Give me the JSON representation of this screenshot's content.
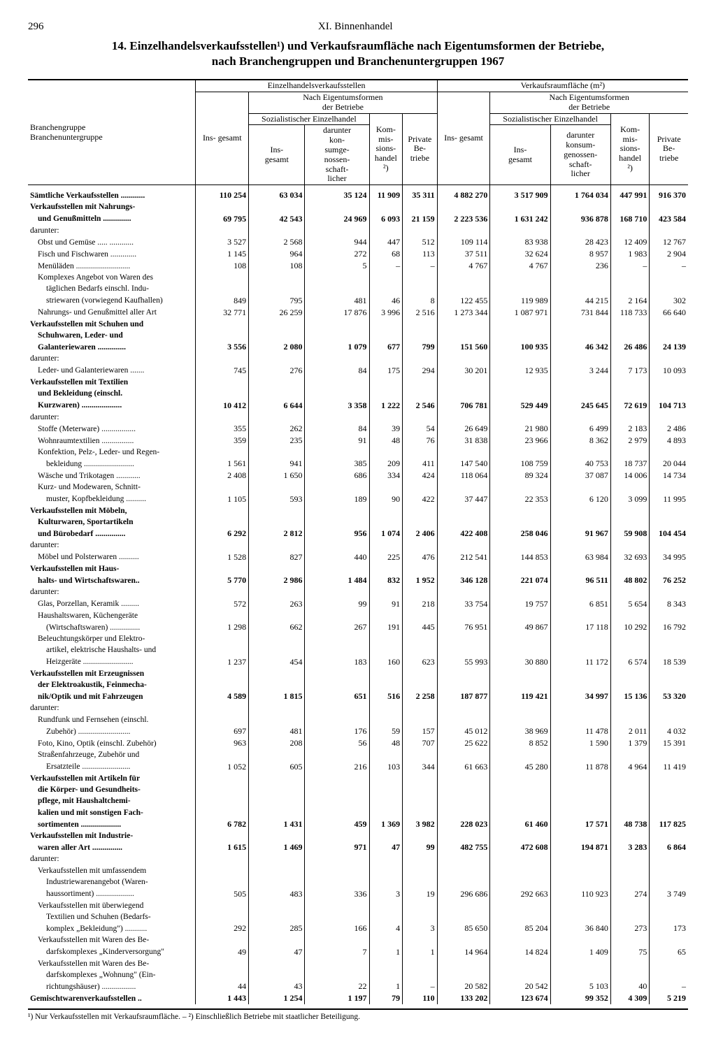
{
  "page_number": "296",
  "chapter": "XI. Binnenhandel",
  "title_line1": "14. Einzelhandelsverkaufsstellen¹) und Verkaufsraumfläche nach Eigentumsformen der Betriebe,",
  "title_line2": "nach Branchengruppen und Branchenuntergruppen 1967",
  "head": {
    "col_group1": "Einzelhandelsverkaufsstellen",
    "col_group2": "Verkaufsraumfläche (m²)",
    "eigentum": "Nach Eigentumsformen\nder Betriebe",
    "row_label1": "Branchengruppe",
    "row_label2": "Branchenuntergruppe",
    "insgesamt": "Ins-\ngesamt",
    "soz": "Sozialistischer\nEinzelhandel",
    "soz_ins": "Ins-\ngesamt",
    "soz_dar": "darunter\nkon-\nsumge-\nnossen-\nschaft-\nlicher",
    "kom": "Kom-\nmis-\nsions-\nhandel\n²)",
    "priv": "Private\nBe-\ntriebe",
    "dar2": "darunter\nkonsum-\ngenossen-\nschaft-\nlicher"
  },
  "rows": [
    {
      "label": "Sämtliche Verkaufsstellen ............",
      "bold": true,
      "v": [
        "110 254",
        "63 034",
        "35 124",
        "11 909",
        "35 311",
        "4 882 270",
        "3 517 909",
        "1 764 034",
        "447 991",
        "916 370"
      ]
    },
    {
      "label": "Verkaufsstellen mit Nahrungs-",
      "bold": true,
      "v": [
        "",
        "",
        "",
        "",
        "",
        "",
        "",
        "",
        "",
        ""
      ]
    },
    {
      "label": "und Genußmitteln ..............",
      "bold": true,
      "indent": 1,
      "v": [
        "69 795",
        "42 543",
        "24 969",
        "6 093",
        "21 159",
        "2 223 536",
        "1 631 242",
        "936 878",
        "168 710",
        "423 584"
      ]
    },
    {
      "label": "darunter:",
      "v": [
        "",
        "",
        "",
        "",
        "",
        "",
        "",
        "",
        "",
        ""
      ]
    },
    {
      "label": "Obst und Gemüse ..... ............",
      "indent": 1,
      "v": [
        "3 527",
        "2 568",
        "944",
        "447",
        "512",
        "109 114",
        "83 938",
        "28 423",
        "12 409",
        "12 767"
      ]
    },
    {
      "label": "Fisch und Fischwaren .............",
      "indent": 1,
      "v": [
        "1 145",
        "964",
        "272",
        "68",
        "113",
        "37 511",
        "32 624",
        "8 957",
        "1 983",
        "2 904"
      ]
    },
    {
      "label": "Menüläden ...........................",
      "indent": 1,
      "v": [
        "108",
        "108",
        "5",
        "–",
        "–",
        "4 767",
        "4 767",
        "236",
        "–",
        "–"
      ]
    },
    {
      "label": "Komplexes Angebot von Waren des",
      "indent": 1,
      "v": [
        "",
        "",
        "",
        "",
        "",
        "",
        "",
        "",
        "",
        ""
      ]
    },
    {
      "label": "täglichen Bedarfs einschl. Indu-",
      "indent": 2,
      "v": [
        "",
        "",
        "",
        "",
        "",
        "",
        "",
        "",
        "",
        ""
      ]
    },
    {
      "label": "striewaren (vorwiegend Kaufhallen)",
      "indent": 2,
      "v": [
        "849",
        "795",
        "481",
        "46",
        "8",
        "122 455",
        "119 989",
        "44 215",
        "2 164",
        "302"
      ]
    },
    {
      "label": "Nahrungs- und Genußmittel aller Art",
      "indent": 1,
      "v": [
        "32 771",
        "26 259",
        "17 876",
        "3 996",
        "2 516",
        "1 273 344",
        "1 087 971",
        "731 844",
        "118 733",
        "66 640"
      ]
    },
    {
      "label": "Verkaufsstellen mit Schuhen und",
      "bold": true,
      "v": [
        "",
        "",
        "",
        "",
        "",
        "",
        "",
        "",
        "",
        ""
      ]
    },
    {
      "label": "Schuhwaren, Leder- und",
      "bold": true,
      "indent": 1,
      "v": [
        "",
        "",
        "",
        "",
        "",
        "",
        "",
        "",
        "",
        ""
      ]
    },
    {
      "label": "Galanteriewaren ..............",
      "bold": true,
      "indent": 1,
      "v": [
        "3 556",
        "2 080",
        "1 079",
        "677",
        "799",
        "151 560",
        "100 935",
        "46 342",
        "26 486",
        "24 139"
      ]
    },
    {
      "label": "darunter:",
      "v": [
        "",
        "",
        "",
        "",
        "",
        "",
        "",
        "",
        "",
        ""
      ]
    },
    {
      "label": "Leder- und Galanteriewaren .......",
      "indent": 1,
      "v": [
        "745",
        "276",
        "84",
        "175",
        "294",
        "30 201",
        "12 935",
        "3 244",
        "7 173",
        "10 093"
      ]
    },
    {
      "label": "Verkaufsstellen mit Textilien",
      "bold": true,
      "v": [
        "",
        "",
        "",
        "",
        "",
        "",
        "",
        "",
        "",
        ""
      ]
    },
    {
      "label": "und Bekleidung (einschl.",
      "bold": true,
      "indent": 1,
      "v": [
        "",
        "",
        "",
        "",
        "",
        "",
        "",
        "",
        "",
        ""
      ]
    },
    {
      "label": "Kurzwaren) ....................",
      "bold": true,
      "indent": 1,
      "v": [
        "10 412",
        "6 644",
        "3 358",
        "1 222",
        "2 546",
        "706 781",
        "529 449",
        "245 645",
        "72 619",
        "104 713"
      ]
    },
    {
      "label": "darunter:",
      "v": [
        "",
        "",
        "",
        "",
        "",
        "",
        "",
        "",
        "",
        ""
      ]
    },
    {
      "label": "Stoffe (Meterware) .................",
      "indent": 1,
      "v": [
        "355",
        "262",
        "84",
        "39",
        "54",
        "26 649",
        "21 980",
        "6 499",
        "2 183",
        "2 486"
      ]
    },
    {
      "label": "Wohnraumtextilien ................",
      "indent": 1,
      "v": [
        "359",
        "235",
        "91",
        "48",
        "76",
        "31 838",
        "23 966",
        "8 362",
        "2 979",
        "4 893"
      ]
    },
    {
      "label": "Konfektion, Pelz-, Leder- und Regen-",
      "indent": 1,
      "v": [
        "",
        "",
        "",
        "",
        "",
        "",
        "",
        "",
        "",
        ""
      ]
    },
    {
      "label": "bekleidung .........................",
      "indent": 2,
      "v": [
        "1 561",
        "941",
        "385",
        "209",
        "411",
        "147 540",
        "108 759",
        "40 753",
        "18 737",
        "20 044"
      ]
    },
    {
      "label": "Wäsche und Trikotagen ............",
      "indent": 1,
      "v": [
        "2 408",
        "1 650",
        "686",
        "334",
        "424",
        "118 064",
        "89 324",
        "37 087",
        "14 006",
        "14 734"
      ]
    },
    {
      "label": "Kurz- und Modewaren, Schnitt-",
      "indent": 1,
      "v": [
        "",
        "",
        "",
        "",
        "",
        "",
        "",
        "",
        "",
        ""
      ]
    },
    {
      "label": "muster, Kopfbekleidung ..........",
      "indent": 2,
      "v": [
        "1 105",
        "593",
        "189",
        "90",
        "422",
        "37 447",
        "22 353",
        "6 120",
        "3 099",
        "11 995"
      ]
    },
    {
      "label": "Verkaufsstellen mit Möbeln,",
      "bold": true,
      "v": [
        "",
        "",
        "",
        "",
        "",
        "",
        "",
        "",
        "",
        ""
      ]
    },
    {
      "label": "Kulturwaren, Sportartikeln",
      "bold": true,
      "indent": 1,
      "v": [
        "",
        "",
        "",
        "",
        "",
        "",
        "",
        "",
        "",
        ""
      ]
    },
    {
      "label": "und Bürobedarf ...............",
      "bold": true,
      "indent": 1,
      "v": [
        "6 292",
        "2 812",
        "956",
        "1 074",
        "2 406",
        "422 408",
        "258 046",
        "91 967",
        "59 908",
        "104 454"
      ]
    },
    {
      "label": "darunter:",
      "v": [
        "",
        "",
        "",
        "",
        "",
        "",
        "",
        "",
        "",
        ""
      ]
    },
    {
      "label": "Möbel und Polsterwaren ..........",
      "indent": 1,
      "v": [
        "1 528",
        "827",
        "440",
        "225",
        "476",
        "212 541",
        "144 853",
        "63 984",
        "32 693",
        "34 995"
      ]
    },
    {
      "label": "Verkaufsstellen mit Haus-",
      "bold": true,
      "v": [
        "",
        "",
        "",
        "",
        "",
        "",
        "",
        "",
        "",
        ""
      ]
    },
    {
      "label": "halts- und Wirtschaftswaren..",
      "bold": true,
      "indent": 1,
      "v": [
        "5 770",
        "2 986",
        "1 484",
        "832",
        "1 952",
        "346 128",
        "221 074",
        "96 511",
        "48 802",
        "76 252"
      ]
    },
    {
      "label": "darunter:",
      "v": [
        "",
        "",
        "",
        "",
        "",
        "",
        "",
        "",
        "",
        ""
      ]
    },
    {
      "label": "Glas, Porzellan, Keramik .........",
      "indent": 1,
      "v": [
        "572",
        "263",
        "99",
        "91",
        "218",
        "33 754",
        "19 757",
        "6 851",
        "5 654",
        "8 343"
      ]
    },
    {
      "label": "Haushaltswaren, Küchengeräte",
      "indent": 1,
      "v": [
        "",
        "",
        "",
        "",
        "",
        "",
        "",
        "",
        "",
        ""
      ]
    },
    {
      "label": "(Wirtschaftswaren) ...............",
      "indent": 2,
      "v": [
        "1 298",
        "662",
        "267",
        "191",
        "445",
        "76 951",
        "49 867",
        "17 118",
        "10 292",
        "16 792"
      ]
    },
    {
      "label": "Beleuchtungskörper und Elektro-",
      "indent": 1,
      "v": [
        "",
        "",
        "",
        "",
        "",
        "",
        "",
        "",
        "",
        ""
      ]
    },
    {
      "label": "artikel, elektrische Haushalts- und",
      "indent": 2,
      "v": [
        "",
        "",
        "",
        "",
        "",
        "",
        "",
        "",
        "",
        ""
      ]
    },
    {
      "label": "Heizgeräte .........................",
      "indent": 2,
      "v": [
        "1 237",
        "454",
        "183",
        "160",
        "623",
        "55 993",
        "30 880",
        "11 172",
        "6 574",
        "18 539"
      ]
    },
    {
      "label": "Verkaufsstellen mit Erzeugnissen",
      "bold": true,
      "v": [
        "",
        "",
        "",
        "",
        "",
        "",
        "",
        "",
        "",
        ""
      ]
    },
    {
      "label": "der Elektroakustik, Feinmecha-",
      "bold": true,
      "indent": 1,
      "v": [
        "",
        "",
        "",
        "",
        "",
        "",
        "",
        "",
        "",
        ""
      ]
    },
    {
      "label": "nik/Optik und mit Fahrzeugen",
      "bold": true,
      "indent": 1,
      "v": [
        "4 589",
        "1 815",
        "651",
        "516",
        "2 258",
        "187 877",
        "119 421",
        "34 997",
        "15 136",
        "53 320"
      ]
    },
    {
      "label": "darunter:",
      "v": [
        "",
        "",
        "",
        "",
        "",
        "",
        "",
        "",
        "",
        ""
      ]
    },
    {
      "label": "Rundfunk und Fernsehen (einschl.",
      "indent": 1,
      "v": [
        "",
        "",
        "",
        "",
        "",
        "",
        "",
        "",
        "",
        ""
      ]
    },
    {
      "label": "Zubehör) ..........................",
      "indent": 2,
      "v": [
        "697",
        "481",
        "176",
        "59",
        "157",
        "45 012",
        "38 969",
        "11 478",
        "2 011",
        "4 032"
      ]
    },
    {
      "label": "Foto, Kino, Optik (einschl. Zubehör)",
      "indent": 1,
      "v": [
        "963",
        "208",
        "56",
        "48",
        "707",
        "25 622",
        "8 852",
        "1 590",
        "1 379",
        "15 391"
      ]
    },
    {
      "label": "Straßenfahrzeuge, Zubehör und",
      "indent": 1,
      "v": [
        "",
        "",
        "",
        "",
        "",
        "",
        "",
        "",
        "",
        ""
      ]
    },
    {
      "label": "Ersatzteile ........................",
      "indent": 2,
      "v": [
        "1 052",
        "605",
        "216",
        "103",
        "344",
        "61 663",
        "45 280",
        "11 878",
        "4 964",
        "11 419"
      ]
    },
    {
      "label": "Verkaufsstellen mit Artikeln für",
      "bold": true,
      "v": [
        "",
        "",
        "",
        "",
        "",
        "",
        "",
        "",
        "",
        ""
      ]
    },
    {
      "label": "die Körper- und Gesundheits-",
      "bold": true,
      "indent": 1,
      "v": [
        "",
        "",
        "",
        "",
        "",
        "",
        "",
        "",
        "",
        ""
      ]
    },
    {
      "label": "pflege, mit Haushaltchemi-",
      "bold": true,
      "indent": 1,
      "v": [
        "",
        "",
        "",
        "",
        "",
        "",
        "",
        "",
        "",
        ""
      ]
    },
    {
      "label": "kalien und mit sonstigen Fach-",
      "bold": true,
      "indent": 1,
      "v": [
        "",
        "",
        "",
        "",
        "",
        "",
        "",
        "",
        "",
        ""
      ]
    },
    {
      "label": "sortimenten ....................",
      "bold": true,
      "indent": 1,
      "v": [
        "6 782",
        "1 431",
        "459",
        "1 369",
        "3 982",
        "228 023",
        "61 460",
        "17 571",
        "48 738",
        "117 825"
      ]
    },
    {
      "label": "Verkaufsstellen mit Industrie-",
      "bold": true,
      "v": [
        "",
        "",
        "",
        "",
        "",
        "",
        "",
        "",
        "",
        ""
      ]
    },
    {
      "label": "waren aller Art ...............",
      "bold": true,
      "indent": 1,
      "v": [
        "1 615",
        "1 469",
        "971",
        "47",
        "99",
        "482 755",
        "472 608",
        "194 871",
        "3 283",
        "6 864"
      ]
    },
    {
      "label": "darunter:",
      "v": [
        "",
        "",
        "",
        "",
        "",
        "",
        "",
        "",
        "",
        ""
      ]
    },
    {
      "label": "Verkaufsstellen mit umfassendem",
      "indent": 1,
      "v": [
        "",
        "",
        "",
        "",
        "",
        "",
        "",
        "",
        "",
        ""
      ]
    },
    {
      "label": "Industriewarenangebot (Waren-",
      "indent": 2,
      "v": [
        "",
        "",
        "",
        "",
        "",
        "",
        "",
        "",
        "",
        ""
      ]
    },
    {
      "label": "haussortiment) ...................",
      "indent": 2,
      "v": [
        "505",
        "483",
        "336",
        "3",
        "19",
        "296 686",
        "292 663",
        "110 923",
        "274",
        "3 749"
      ]
    },
    {
      "label": "Verkaufsstellen mit überwiegend",
      "indent": 1,
      "v": [
        "",
        "",
        "",
        "",
        "",
        "",
        "",
        "",
        "",
        ""
      ]
    },
    {
      "label": "Textilien und Schuhen (Bedarfs-",
      "indent": 2,
      "v": [
        "",
        "",
        "",
        "",
        "",
        "",
        "",
        "",
        "",
        ""
      ]
    },
    {
      "label": "komplex „Bekleidung\") ...........",
      "indent": 2,
      "v": [
        "292",
        "285",
        "166",
        "4",
        "3",
        "85 650",
        "85 204",
        "36 840",
        "273",
        "173"
      ]
    },
    {
      "label": "Verkaufsstellen mit Waren des Be-",
      "indent": 1,
      "v": [
        "",
        "",
        "",
        "",
        "",
        "",
        "",
        "",
        "",
        ""
      ]
    },
    {
      "label": "darfskomplexes „Kinderversorgung\"",
      "indent": 2,
      "v": [
        "49",
        "47",
        "7",
        "1",
        "1",
        "14 964",
        "14 824",
        "1 409",
        "75",
        "65"
      ]
    },
    {
      "label": "Verkaufsstellen mit Waren des Be-",
      "indent": 1,
      "v": [
        "",
        "",
        "",
        "",
        "",
        "",
        "",
        "",
        "",
        ""
      ]
    },
    {
      "label": "darfskomplexes „Wohnung\" (Ein-",
      "indent": 2,
      "v": [
        "",
        "",
        "",
        "",
        "",
        "",
        "",
        "",
        "",
        ""
      ]
    },
    {
      "label": "richtungshäuser) .................",
      "indent": 2,
      "v": [
        "44",
        "43",
        "22",
        "1",
        "–",
        "20 582",
        "20 542",
        "5 103",
        "40",
        "–"
      ]
    },
    {
      "label": "Gemischtwarenverkaufsstellen ..",
      "bold": true,
      "v": [
        "1 443",
        "1 254",
        "1 197",
        "79",
        "110",
        "133 202",
        "123 674",
        "99 352",
        "4 309",
        "5 219"
      ]
    }
  ],
  "footnote": "¹) Nur Verkaufsstellen mit Verkaufsraumfläche. – ²) Einschließlich Betriebe mit staatlicher Beteiligung."
}
